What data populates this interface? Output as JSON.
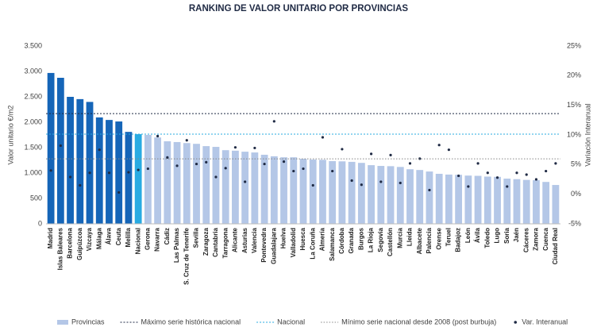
{
  "chart_data": {
    "type": "bar",
    "title": "RANKING DE VALOR UNITARIO POR PROVINCIAS",
    "y_label": "Valor unitario €/m2",
    "y2_label": "Variación Interanual",
    "categories": [
      "Madrid",
      "Islas Baleares",
      "Barcelona",
      "Guipúzcoa",
      "Vizcaya",
      "Málaga",
      "Álava",
      "Ceuta",
      "Melilla",
      "Nacional",
      "Gerona",
      "Navarra",
      "Cádiz",
      "Las Palmas",
      "S. Cruz de Tenerife",
      "Sevilla",
      "Zaragoza",
      "Cantabria",
      "Tarragona",
      "Alicante",
      "Asturias",
      "Valencia",
      "Pontevedra",
      "Guadalajara",
      "Huelva",
      "Valladolid",
      "Huesca",
      "La Coruña",
      "Almería",
      "Salamanca",
      "Córdoba",
      "Granada",
      "Burgos",
      "La Rioja",
      "Segovia",
      "Castellón",
      "Murcia",
      "Lleida",
      "Albacete",
      "Palencia",
      "Orense",
      "Teruel",
      "Badajoz",
      "León",
      "Ávila",
      "Toledo",
      "Lugo",
      "Soria",
      "Jaén",
      "Cáceres",
      "Zamora",
      "Cuenca",
      "Ciudad Real"
    ],
    "series": [
      {
        "name": "Provincias",
        "color": "#b4c7e7",
        "point_colors": [
          "#1565b8",
          "#1565b8",
          "#1565b8",
          "#1565b8",
          "#1565b8",
          "#1565b8",
          "#1565b8",
          "#1565b8",
          "#1565b8",
          "#29abe2",
          "#b4c7e7",
          "#b4c7e7",
          "#b4c7e7",
          "#b4c7e7",
          "#b4c7e7",
          "#b4c7e7",
          "#b4c7e7",
          "#b4c7e7",
          "#b4c7e7",
          "#b4c7e7",
          "#b4c7e7",
          "#b4c7e7",
          "#b4c7e7",
          "#b4c7e7",
          "#b4c7e7",
          "#b4c7e7",
          "#b4c7e7",
          "#b4c7e7",
          "#b4c7e7",
          "#b4c7e7",
          "#b4c7e7",
          "#b4c7e7",
          "#b4c7e7",
          "#b4c7e7",
          "#b4c7e7",
          "#b4c7e7",
          "#b4c7e7",
          "#b4c7e7",
          "#b4c7e7",
          "#b4c7e7",
          "#b4c7e7",
          "#b4c7e7",
          "#b4c7e7",
          "#b4c7e7",
          "#b4c7e7",
          "#b4c7e7",
          "#b4c7e7",
          "#b4c7e7",
          "#b4c7e7",
          "#b4c7e7",
          "#b4c7e7",
          "#b4c7e7",
          "#b4c7e7"
        ],
        "values": [
          2970,
          2875,
          2500,
          2455,
          2400,
          2095,
          2045,
          2015,
          1810,
          1765,
          1750,
          1700,
          1625,
          1610,
          1590,
          1575,
          1530,
          1515,
          1450,
          1440,
          1420,
          1405,
          1360,
          1330,
          1310,
          1310,
          1280,
          1265,
          1260,
          1235,
          1230,
          1220,
          1200,
          1155,
          1140,
          1135,
          1120,
          1075,
          1060,
          1030,
          985,
          970,
          965,
          950,
          945,
          930,
          925,
          890,
          880,
          865,
          860,
          825,
          765
        ]
      },
      {
        "name": "Var. Interanual",
        "color": "#1f2a44",
        "axis": "y2",
        "values": [
          4.0,
          8.2,
          2.9,
          1.5,
          3.6,
          7.5,
          3.6,
          0.3,
          3.7,
          4.1,
          4.3,
          9.8,
          6.2,
          4.8,
          9.1,
          5.1,
          5.4,
          2.9,
          4.4,
          7.9,
          2.1,
          7.8,
          5.1,
          12.3,
          5.5,
          3.9,
          4.3,
          1.5,
          9.6,
          3.9,
          7.6,
          2.3,
          1.6,
          6.8,
          2.1,
          6.6,
          1.9,
          5.2,
          6.0,
          0.7,
          8.3,
          7.5,
          3.1,
          1.3,
          5.2,
          3.6,
          2.8,
          1.3,
          3.6,
          3.3,
          2.5,
          3.9,
          5.2
        ]
      }
    ],
    "reference_lines": [
      {
        "name": "Máximo serie histórica nacional",
        "value": 2170,
        "color": "#1f2a44"
      },
      {
        "name": "Nacional",
        "value": 1765,
        "color": "#29abe2"
      },
      {
        "name": "Mínimo serie nacional desde 2008 (post burbuja)",
        "value": 1280,
        "color": "#888888"
      }
    ],
    "ylim": [
      0,
      3500
    ],
    "yticks": [
      0,
      500,
      {
        "value": 1000,
        "label": "1.000"
      },
      {
        "value": 1500,
        "label": "1.500"
      },
      {
        "value": 2000,
        "label": "2.000"
      },
      {
        "value": 2500,
        "label": "2.500"
      },
      {
        "value": 3000,
        "label": "3.000"
      },
      {
        "value": 3500,
        "label": "3.500"
      }
    ],
    "y2lim": [
      -5,
      25
    ],
    "y2ticks": [
      {
        "value": -5,
        "label": "-5%"
      },
      {
        "value": 0,
        "label": "0%"
      },
      {
        "value": 5,
        "label": "5%"
      },
      {
        "value": 10,
        "label": "10%"
      },
      {
        "value": 15,
        "label": "15%"
      },
      {
        "value": 20,
        "label": "20%"
      },
      {
        "value": 25,
        "label": "25%"
      }
    ],
    "grid": false
  }
}
